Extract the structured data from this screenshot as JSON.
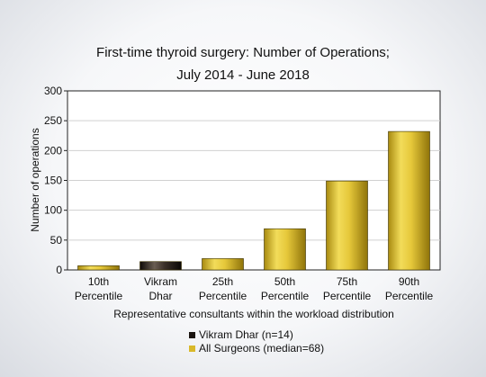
{
  "chart_data": {
    "type": "bar",
    "title": "First-time thyroid surgery: Number of Operations;",
    "subtitle": "July 2014 - June 2018",
    "xlabel": "Representative consultants within the workload distribution",
    "ylabel": "Number of operations",
    "ylim": [
      0,
      300
    ],
    "yticks": [
      "0",
      "50",
      "100",
      "150",
      "200",
      "250",
      "300"
    ],
    "categories": [
      [
        "10th",
        "Percentile"
      ],
      [
        "Vikram",
        "Dhar"
      ],
      [
        "25th",
        "Percentile"
      ],
      [
        "50th",
        "Percentile"
      ],
      [
        "75th",
        "Percentile"
      ],
      [
        "90th",
        "Percentile"
      ]
    ],
    "values": [
      7,
      14,
      19,
      69,
      149,
      232
    ],
    "series_index": [
      1,
      0,
      1,
      1,
      1,
      1
    ],
    "legend": [
      {
        "label": "Vikram Dhar (n=14)",
        "color": "#1a1410"
      },
      {
        "label": "All Surgeons (median=68)",
        "color": "#d9b92a"
      }
    ],
    "grid": true,
    "legend_placement": "bottom"
  }
}
